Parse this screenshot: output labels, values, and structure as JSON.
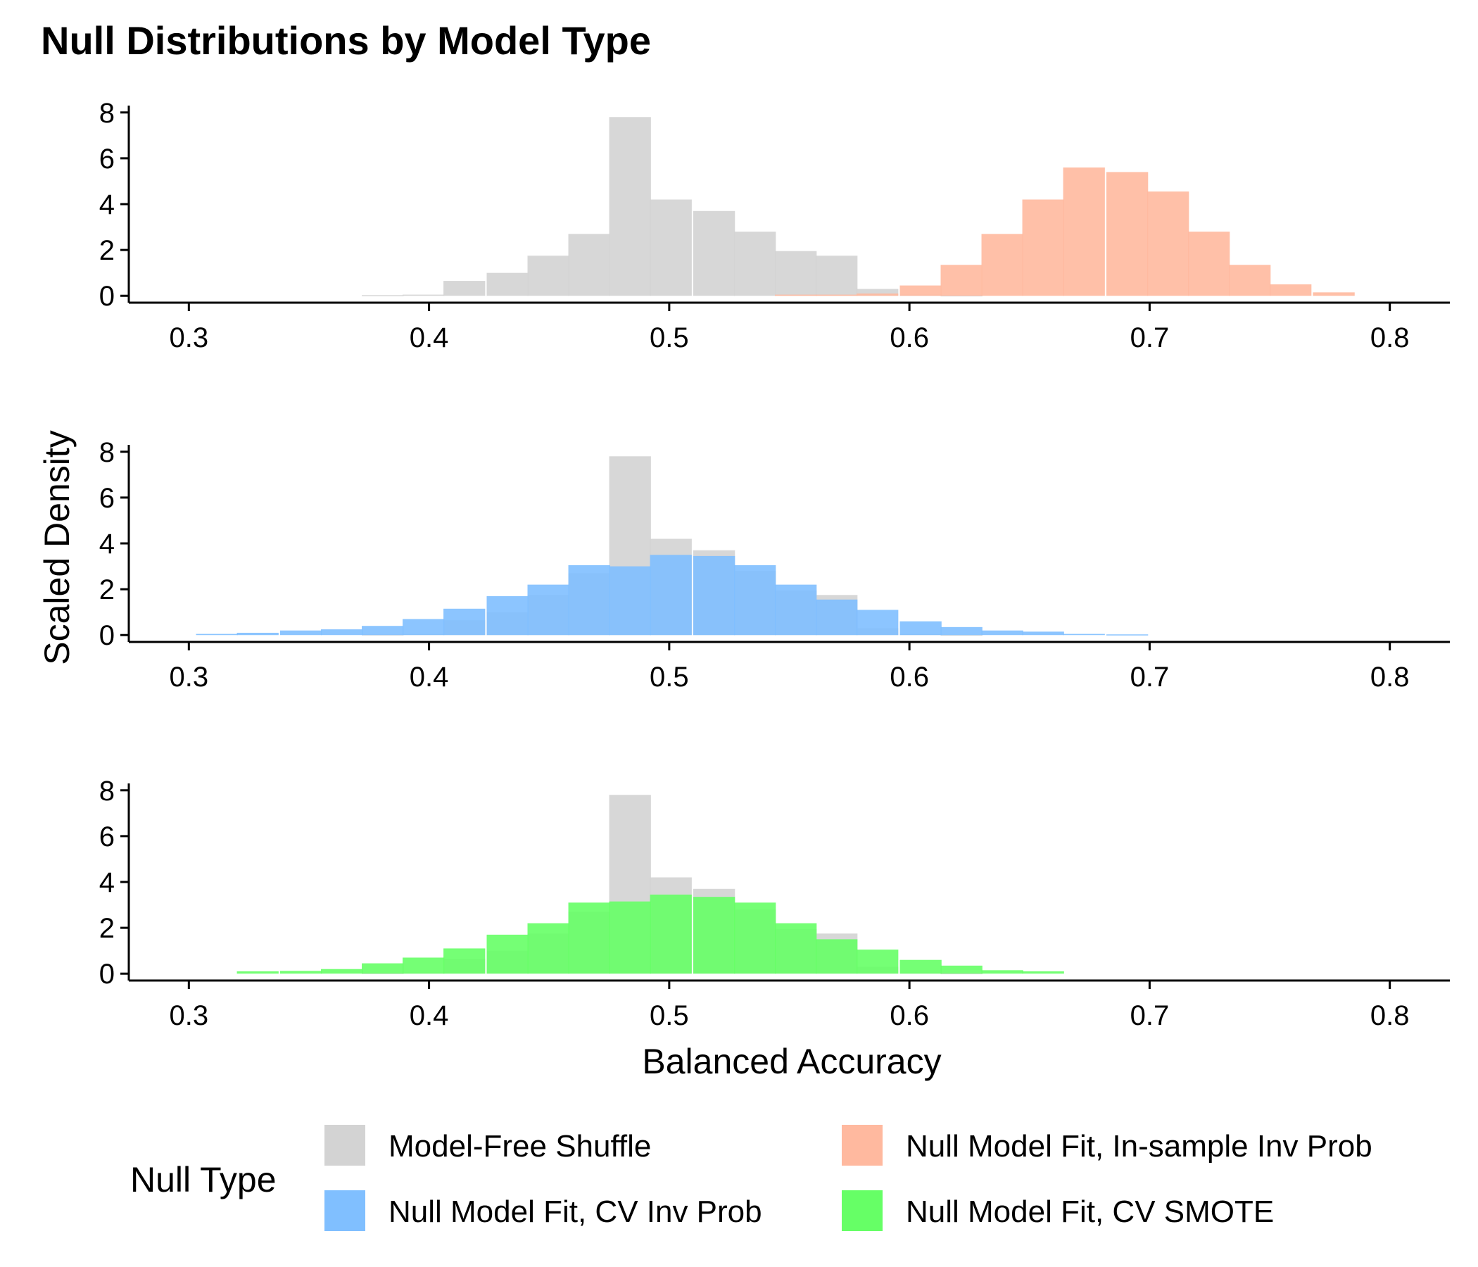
{
  "chart_data": {
    "type": "bar",
    "subtype": "overlaid-histogram-facets",
    "title": "Null Distributions by Model Type",
    "xlabel": "Balanced Accuracy",
    "ylabel": "Scaled Density",
    "xlim": [
      0.275,
      0.825
    ],
    "ylim": [
      -0.3,
      8.3
    ],
    "xticks": [
      0.3,
      0.4,
      0.5,
      0.6,
      0.7,
      0.8
    ],
    "xtick_labels": [
      "0.3",
      "0.4",
      "0.5",
      "0.6",
      "0.7",
      "0.8"
    ],
    "yticks": [
      0,
      2,
      4,
      6,
      8
    ],
    "ytick_labels": [
      "0",
      "2",
      "4",
      "6",
      "8"
    ],
    "bin_width": 0.0172,
    "colors": {
      "shuffle": "#d3d3d3",
      "insample": "#ffb99f",
      "cv_invprob": "#80bfff",
      "cv_smote": "#66ff66"
    },
    "legend": {
      "title": "Null Type",
      "position": "bottom",
      "entries": [
        {
          "key": "shuffle",
          "label": "Model-Free Shuffle"
        },
        {
          "key": "insample",
          "label": "Null Model Fit, In-sample Inv Prob"
        },
        {
          "key": "cv_invprob",
          "label": "Null Model Fit, CV Inv Prob"
        },
        {
          "key": "cv_smote",
          "label": "Null Model Fit, CV SMOTE"
        }
      ]
    },
    "series": [
      {
        "key": "shuffle",
        "name": "Model-Free Shuffle",
        "bin_starts": [
          0.372,
          0.389,
          0.406,
          0.424,
          0.441,
          0.458,
          0.475,
          0.492,
          0.51,
          0.527,
          0.544,
          0.561,
          0.578,
          0.596,
          0.613
        ],
        "values": [
          0.03,
          0.05,
          0.65,
          1.0,
          1.75,
          2.7,
          7.8,
          4.2,
          3.7,
          2.8,
          1.95,
          1.75,
          0.3,
          0.05,
          0.02
        ]
      },
      {
        "key": "insample",
        "name": "Null Model Fit, In-sample Inv Prob",
        "bin_starts": [
          0.544,
          0.561,
          0.578,
          0.596,
          0.613,
          0.63,
          0.647,
          0.664,
          0.682,
          0.699,
          0.716,
          0.733,
          0.75,
          0.768
        ],
        "values": [
          0.05,
          0.05,
          0.1,
          0.45,
          1.35,
          2.7,
          4.2,
          5.6,
          5.4,
          4.55,
          2.8,
          1.35,
          0.5,
          0.15
        ]
      },
      {
        "key": "cv_invprob",
        "name": "Null Model Fit, CV Inv Prob",
        "bin_starts": [
          0.303,
          0.32,
          0.338,
          0.355,
          0.372,
          0.389,
          0.406,
          0.424,
          0.441,
          0.458,
          0.475,
          0.492,
          0.51,
          0.527,
          0.544,
          0.561,
          0.578,
          0.596,
          0.613,
          0.63,
          0.647,
          0.664,
          0.682
        ],
        "values": [
          0.05,
          0.1,
          0.2,
          0.25,
          0.4,
          0.7,
          1.15,
          1.7,
          2.2,
          3.05,
          3.0,
          3.5,
          3.45,
          3.05,
          2.2,
          1.55,
          1.1,
          0.6,
          0.35,
          0.2,
          0.15,
          0.05,
          0.03
        ]
      },
      {
        "key": "cv_smote",
        "name": "Null Model Fit, CV SMOTE",
        "bin_starts": [
          0.32,
          0.338,
          0.355,
          0.372,
          0.389,
          0.406,
          0.424,
          0.441,
          0.458,
          0.475,
          0.492,
          0.51,
          0.527,
          0.544,
          0.561,
          0.578,
          0.596,
          0.613,
          0.63,
          0.647
        ],
        "values": [
          0.1,
          0.12,
          0.2,
          0.45,
          0.7,
          1.1,
          1.7,
          2.2,
          3.1,
          3.15,
          3.45,
          3.35,
          3.1,
          2.2,
          1.5,
          1.05,
          0.6,
          0.35,
          0.15,
          0.1
        ]
      }
    ],
    "panels": [
      {
        "name": "panel-shuffle-vs-insample",
        "series": [
          "shuffle",
          "insample"
        ]
      },
      {
        "name": "panel-shuffle-vs-cv-invprob",
        "series": [
          "shuffle",
          "cv_invprob"
        ]
      },
      {
        "name": "panel-shuffle-vs-cv-smote",
        "series": [
          "shuffle",
          "cv_smote"
        ]
      }
    ]
  }
}
